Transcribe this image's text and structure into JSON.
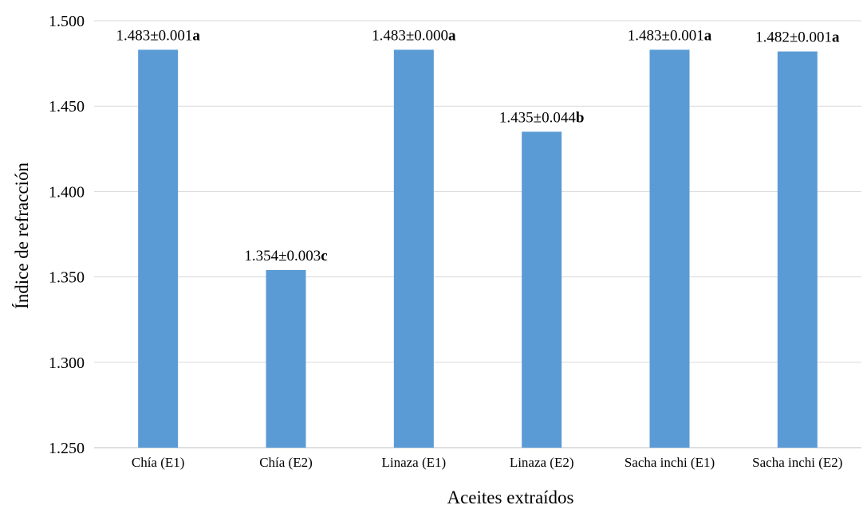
{
  "chart_data": {
    "type": "bar",
    "categories": [
      "Chía (E1)",
      "Chía (E2)",
      "Linaza (E1)",
      "Linaza (E2)",
      "Sacha inchi (E1)",
      "Sacha inchi (E2)"
    ],
    "series": [
      {
        "values": [
          1.483,
          1.354,
          1.483,
          1.435,
          1.483,
          1.482
        ],
        "errors": [
          0.001,
          0.003,
          0.0,
          0.044,
          0.001,
          0.001
        ],
        "labels": [
          "1.483±0.001",
          "1.354±0.003",
          "1.483±0.000",
          "1.435±0.044",
          "1.483±0.001",
          "1.482±0.001"
        ],
        "groups": [
          "a",
          "c",
          "a",
          "b",
          "a",
          "a"
        ]
      }
    ],
    "xlabel": "Aceites extraídos",
    "ylabel": "Índice de refracción",
    "ylim": [
      1.25,
      1.5
    ],
    "yticks": [
      "1.250",
      "1.300",
      "1.350",
      "1.400",
      "1.450",
      "1.500"
    ],
    "ytick_values": [
      1.25,
      1.3,
      1.35,
      1.4,
      1.45,
      1.5
    ],
    "grid": true,
    "legend": "none",
    "colors": {
      "bar": "#5b9bd5",
      "grid": "#d9d9d9"
    }
  }
}
